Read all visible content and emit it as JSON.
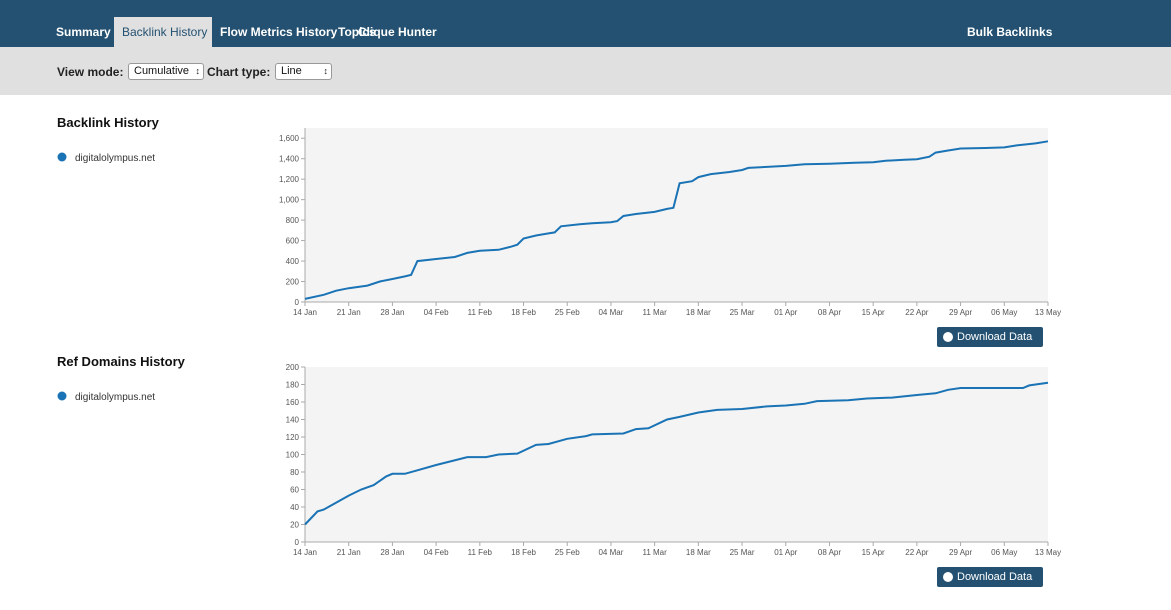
{
  "nav": {
    "items": [
      "Summary",
      "Backlink History",
      "Flow Metrics History",
      "Topics",
      "Clique Hunter"
    ],
    "active": 1,
    "right": "Bulk Backlinks"
  },
  "toolbar": {
    "view_mode": {
      "label": "View mode:",
      "value": "Cumulative"
    },
    "chart_type": {
      "label": "Chart type:",
      "value": "Line"
    }
  },
  "chart_data": [
    {
      "type": "line",
      "title": "Backlink History",
      "download_label": "Download Data",
      "x": [
        "14 Jan",
        "17 Jan",
        "19 Jan",
        "21 Jan",
        "24 Jan",
        "26 Jan",
        "28 Jan",
        "30 Jan",
        "31 Jan",
        "01 Feb",
        "04 Feb",
        "07 Feb",
        "09 Feb",
        "11 Feb",
        "14 Feb",
        "16 Feb",
        "17 Feb",
        "18 Feb",
        "20 Feb",
        "22 Feb",
        "23 Feb",
        "24 Feb",
        "27 Feb",
        "01 Mar",
        "04 Mar",
        "05 Mar",
        "06 Mar",
        "08 Mar",
        "11 Mar",
        "13 Mar",
        "14 Mar",
        "15 Mar",
        "17 Mar",
        "18 Mar",
        "20 Mar",
        "23 Mar",
        "25 Mar",
        "26 Mar",
        "29 Mar",
        "01 Apr",
        "04 Apr",
        "08 Apr",
        "12 Apr",
        "15 Apr",
        "17 Apr",
        "20 Apr",
        "22 Apr",
        "24 Apr",
        "25 Apr",
        "27 Apr",
        "29 Apr",
        "03 May",
        "06 May",
        "08 May",
        "11 May",
        "13 May"
      ],
      "series": [
        {
          "name": "digitalolympus.net",
          "color": "#1a73b5",
          "values": [
            30,
            70,
            110,
            135,
            160,
            200,
            225,
            250,
            265,
            400,
            420,
            440,
            480,
            500,
            510,
            540,
            560,
            620,
            650,
            670,
            680,
            740,
            760,
            770,
            780,
            790,
            840,
            860,
            880,
            910,
            920,
            1160,
            1180,
            1220,
            1250,
            1270,
            1290,
            1310,
            1320,
            1330,
            1345,
            1350,
            1360,
            1365,
            1380,
            1390,
            1395,
            1420,
            1460,
            1480,
            1500,
            1505,
            1510,
            1530,
            1550,
            1570
          ]
        }
      ],
      "xlim": [
        "14 Jan",
        "13 May"
      ],
      "xticks": [
        "14 Jan",
        "21 Jan",
        "28 Jan",
        "04 Feb",
        "11 Feb",
        "18 Feb",
        "25 Feb",
        "04 Mar",
        "11 Mar",
        "18 Mar",
        "25 Mar",
        "01 Apr",
        "08 Apr",
        "15 Apr",
        "22 Apr",
        "29 Apr",
        "06 May",
        "13 May"
      ],
      "ylim": [
        0,
        1700
      ],
      "yticks": [
        0,
        200,
        400,
        600,
        800,
        {
          "value": 1000,
          "label": "1,000"
        },
        {
          "value": 1200,
          "label": "1,200"
        },
        {
          "value": 1400,
          "label": "1,400"
        },
        {
          "value": 1600,
          "label": "1,600"
        }
      ]
    },
    {
      "type": "line",
      "title": "Ref Domains History",
      "download_label": "Download Data",
      "x": [
        "14 Jan",
        "16 Jan",
        "17 Jan",
        "19 Jan",
        "21 Jan",
        "23 Jan",
        "25 Jan",
        "27 Jan",
        "28 Jan",
        "30 Jan",
        "01 Feb",
        "04 Feb",
        "09 Feb",
        "12 Feb",
        "14 Feb",
        "17 Feb",
        "20 Feb",
        "22 Feb",
        "25 Feb",
        "28 Feb",
        "01 Mar",
        "06 Mar",
        "08 Mar",
        "10 Mar",
        "13 Mar",
        "15 Mar",
        "18 Mar",
        "21 Mar",
        "25 Mar",
        "29 Mar",
        "01 Apr",
        "04 Apr",
        "06 Apr",
        "11 Apr",
        "14 Apr",
        "18 Apr",
        "22 Apr",
        "25 Apr",
        "27 Apr",
        "29 Apr",
        "09 May",
        "10 May",
        "13 May"
      ],
      "series": [
        {
          "name": "digitalolympus.net",
          "color": "#1a73b5",
          "values": [
            20,
            35,
            37,
            45,
            53,
            60,
            65,
            75,
            78,
            78,
            82,
            88,
            97,
            97,
            100,
            101,
            111,
            112,
            118,
            121,
            123,
            124,
            129,
            130,
            140,
            143,
            148,
            151,
            152,
            155,
            156,
            158,
            161,
            162,
            164,
            165,
            168,
            170,
            174,
            176,
            176,
            179,
            182
          ]
        }
      ],
      "xlim": [
        "14 Jan",
        "13 May"
      ],
      "xticks": [
        "14 Jan",
        "21 Jan",
        "28 Jan",
        "04 Feb",
        "11 Feb",
        "18 Feb",
        "25 Feb",
        "04 Mar",
        "11 Mar",
        "18 Mar",
        "25 Mar",
        "01 Apr",
        "08 Apr",
        "15 Apr",
        "22 Apr",
        "29 Apr",
        "06 May",
        "13 May"
      ],
      "ylim": [
        0,
        200
      ],
      "yticks": [
        0,
        20,
        40,
        60,
        80,
        100,
        120,
        140,
        160,
        180,
        200
      ]
    }
  ]
}
